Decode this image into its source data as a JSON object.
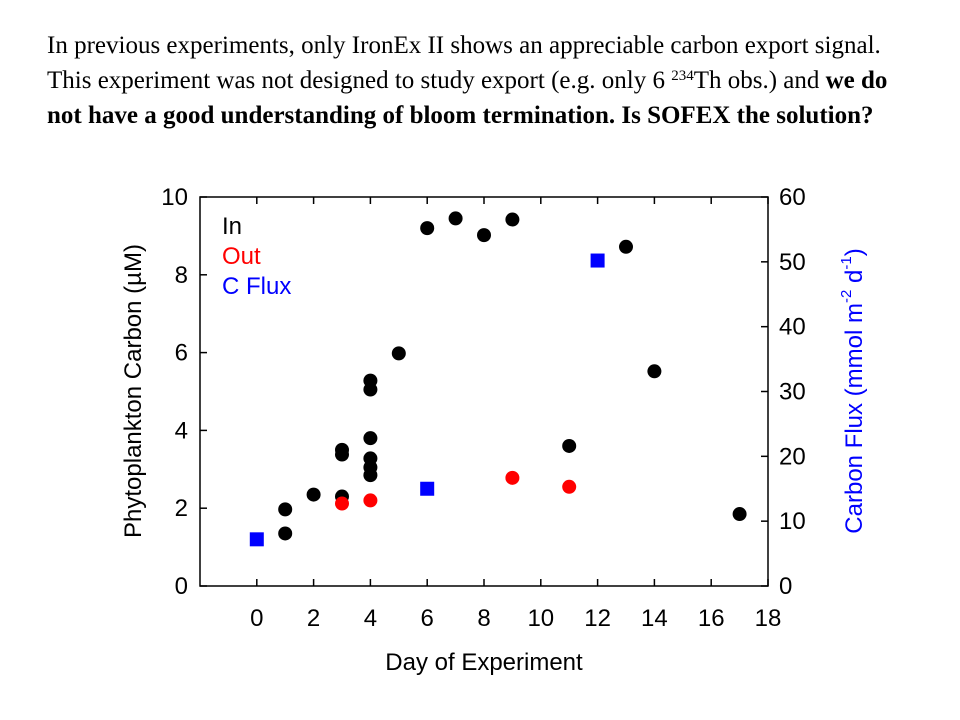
{
  "caption": {
    "part1": "In previous experiments, only IronEx II shows an appreciable carbon export signal.  This experiment was not designed to study export (e.g. only 6 ",
    "sup": "234",
    "part2": "Th obs.) and ",
    "bold": "we do not have a good understanding of bloom termination.   Is SOFEX the solution?"
  },
  "chart_data": {
    "type": "scatter",
    "xlabel": "Day of Experiment",
    "ylabel_left": "Phytoplankton Carbon (µM)",
    "ylabel_right": {
      "base": "Carbon Flux (mmol m",
      "exp1": "-2",
      "mid": " d",
      "exp2": "-1",
      "end": ")"
    },
    "xlim": [
      -2,
      18
    ],
    "ylim_left": [
      0,
      10
    ],
    "ylim_right": [
      0,
      60
    ],
    "x_ticks": [
      0,
      2,
      4,
      6,
      8,
      10,
      12,
      14,
      16,
      18
    ],
    "y_left_ticks": [
      0,
      2,
      4,
      6,
      8,
      10
    ],
    "y_right_ticks": [
      0,
      10,
      20,
      30,
      40,
      50,
      60
    ],
    "grid": false,
    "legend_position": "top-left",
    "series": [
      {
        "name": "In",
        "axis": "left",
        "marker": "circle",
        "color": "#000000",
        "points": [
          [
            1,
            1.35
          ],
          [
            1,
            1.97
          ],
          [
            2,
            2.35
          ],
          [
            3,
            2.3
          ],
          [
            3,
            3.38
          ],
          [
            3,
            3.5
          ],
          [
            4,
            2.85
          ],
          [
            4,
            3.05
          ],
          [
            4,
            3.28
          ],
          [
            4,
            3.8
          ],
          [
            4,
            5.05
          ],
          [
            4,
            5.28
          ],
          [
            5,
            5.98
          ],
          [
            6,
            9.2
          ],
          [
            7,
            9.45
          ],
          [
            8,
            9.02
          ],
          [
            9,
            9.42
          ],
          [
            11,
            3.6
          ],
          [
            13,
            8.72
          ],
          [
            14,
            5.52
          ],
          [
            17,
            1.85
          ]
        ]
      },
      {
        "name": "Out",
        "axis": "left",
        "marker": "circle",
        "color": "#ff0000",
        "points": [
          [
            3,
            2.12
          ],
          [
            4,
            2.2
          ],
          [
            9,
            2.78
          ],
          [
            11,
            2.55
          ]
        ]
      },
      {
        "name": "C Flux",
        "axis": "right",
        "marker": "square",
        "color": "#0000ff",
        "points": [
          [
            0,
            7.2
          ],
          [
            6,
            15.0
          ],
          [
            12,
            50.2
          ]
        ]
      }
    ]
  }
}
